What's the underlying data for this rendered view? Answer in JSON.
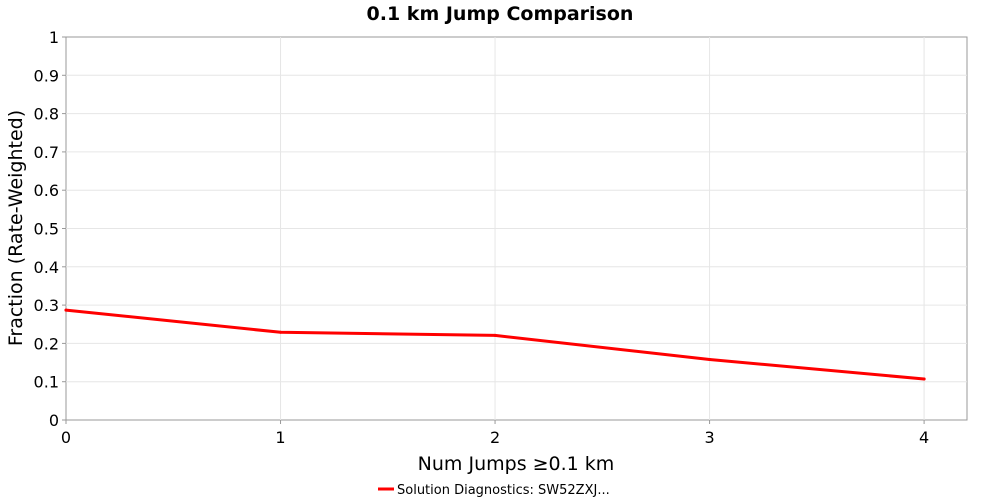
{
  "chart_data": {
    "type": "line",
    "title": "0.1 km Jump Comparison",
    "xlabel": "Num Jumps ≥0.1 km",
    "ylabel": "Fraction (Rate-Weighted)",
    "xlim": [
      0,
      4.2
    ],
    "ylim": [
      0,
      1
    ],
    "x_ticks": [
      0,
      1,
      2,
      3,
      4
    ],
    "x_tick_labels": [
      "0",
      "1",
      "2",
      "3",
      "4"
    ],
    "y_ticks": [
      0,
      0.1,
      0.2,
      0.3,
      0.4,
      0.5,
      0.6,
      0.7,
      0.8,
      0.9,
      1
    ],
    "y_tick_labels": [
      "0",
      "0.1",
      "0.2",
      "0.3",
      "0.4",
      "0.5",
      "0.6",
      "0.7",
      "0.8",
      "0.9",
      "1"
    ],
    "grid": true,
    "legend_position": "bottom-center",
    "series": [
      {
        "name": "Solution Diagnostics: SW52ZXJ...",
        "color": "#ff0000",
        "x": [
          0,
          1,
          2,
          3,
          4
        ],
        "y": [
          0.287,
          0.229,
          0.221,
          0.158,
          0.107
        ]
      }
    ]
  }
}
